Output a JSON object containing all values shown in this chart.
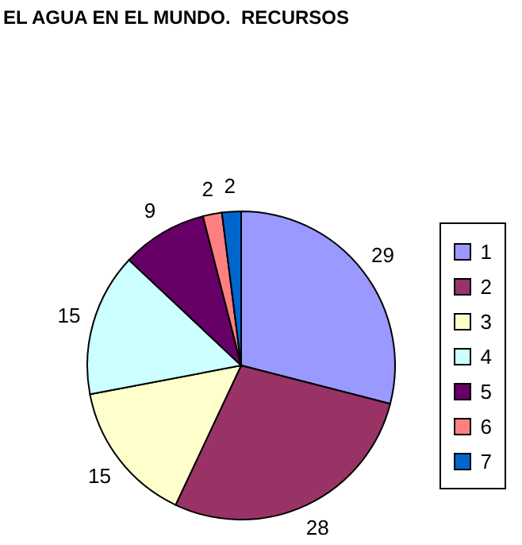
{
  "chart_data": {
    "type": "pie",
    "title": "EL AGUA EN EL MUNDO.  RECURSOS",
    "categories": [
      "1",
      "2",
      "3",
      "4",
      "5",
      "6",
      "7"
    ],
    "values": [
      29,
      28,
      15,
      15,
      9,
      2,
      2
    ],
    "colors": [
      "#9999ff",
      "#993366",
      "#ffffcc",
      "#ccffff",
      "#660066",
      "#ff8080",
      "#0066cc"
    ],
    "data_labels": true,
    "legend": "right"
  }
}
